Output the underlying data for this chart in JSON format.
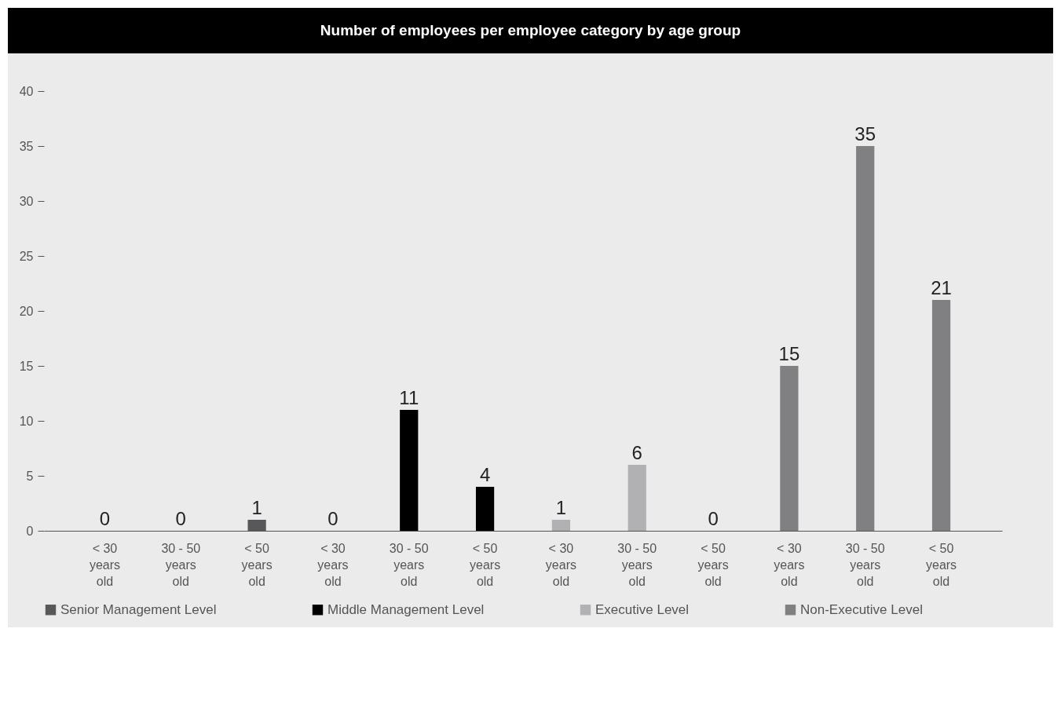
{
  "chart_data": {
    "type": "bar",
    "title": "Number of employees per employee category by age group",
    "categories": [
      "< 30 years old",
      "30 - 50 years old",
      "< 50 years old",
      "< 30 years old",
      "30 - 50 years old",
      "< 50 years old",
      "< 30 years old",
      "30 - 50 years old",
      "< 50 years old",
      "< 30 years old",
      "30 - 50 years old",
      "< 50 years old"
    ],
    "series": [
      {
        "name": "Senior Management Level",
        "color": "#58585a",
        "values": [
          0,
          0,
          1,
          null,
          null,
          null,
          null,
          null,
          null,
          null,
          null,
          null
        ]
      },
      {
        "name": "Middle Management Level",
        "color": "#000000",
        "values": [
          null,
          null,
          null,
          0,
          11,
          4,
          null,
          null,
          null,
          null,
          null,
          null
        ]
      },
      {
        "name": "Executive Level",
        "color": "#b1b1b3",
        "values": [
          null,
          null,
          null,
          null,
          null,
          null,
          1,
          6,
          0,
          null,
          null,
          null
        ]
      },
      {
        "name": "Non-Executive Level",
        "color": "#808083",
        "values": [
          null,
          null,
          null,
          null,
          null,
          null,
          null,
          null,
          null,
          15,
          35,
          21
        ]
      }
    ],
    "ylim": [
      0,
      40
    ],
    "yticks": [
      0,
      5,
      10,
      15,
      20,
      25,
      30,
      35,
      40
    ],
    "grid": false,
    "legend": "bottom",
    "data_labels": true
  }
}
